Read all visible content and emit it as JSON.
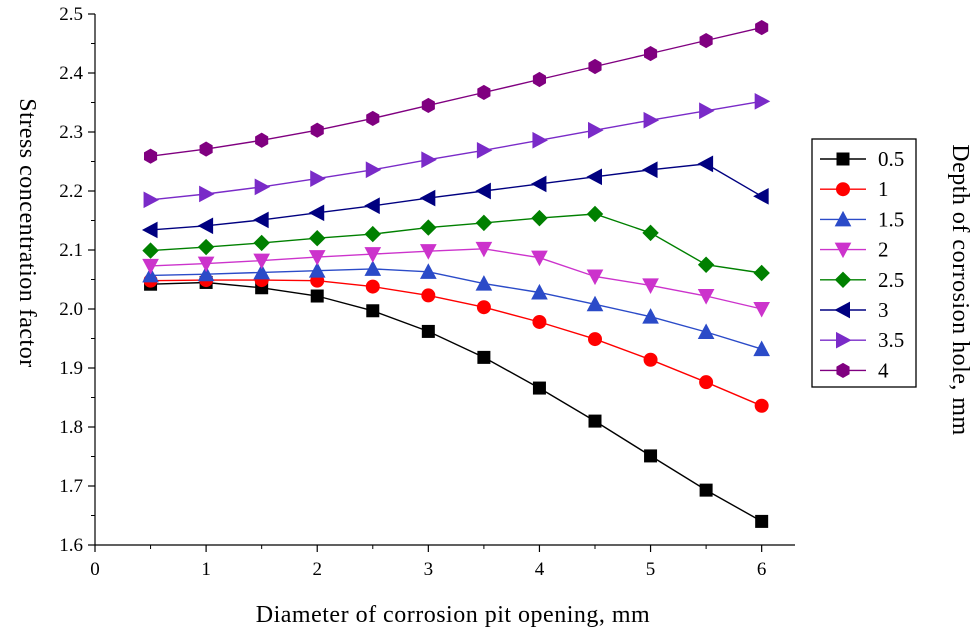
{
  "chart_data": {
    "type": "line",
    "xlabel": "Diameter of corrosion pit opening, mm",
    "ylabel": "Stress concentration factor",
    "legend_title": "Depth of corrosion hole, mm",
    "xlim": [
      0,
      6.3
    ],
    "ylim": [
      1.6,
      2.5
    ],
    "x_ticks": [
      0,
      1,
      2,
      3,
      4,
      5,
      6
    ],
    "y_ticks": [
      1.6,
      1.7,
      1.8,
      1.9,
      2.0,
      2.1,
      2.2,
      2.3,
      2.4,
      2.5
    ],
    "x": [
      0.5,
      1,
      1.5,
      2,
      2.5,
      3,
      3.5,
      4,
      4.5,
      5,
      5.5,
      6
    ],
    "series": [
      {
        "name": "0.5",
        "color": "#000000",
        "marker": "square",
        "values": [
          2.042,
          2.045,
          2.036,
          2.022,
          1.997,
          1.962,
          1.918,
          1.866,
          1.81,
          1.751,
          1.693,
          1.64
        ]
      },
      {
        "name": "1",
        "color": "#ff0000",
        "marker": "circle",
        "values": [
          2.048,
          2.049,
          2.049,
          2.048,
          2.038,
          2.023,
          2.003,
          1.978,
          1.949,
          1.914,
          1.876,
          1.836
        ]
      },
      {
        "name": "1.5",
        "color": "#2b4bc8",
        "marker": "triangle-up",
        "values": [
          2.057,
          2.059,
          2.062,
          2.065,
          2.068,
          2.063,
          2.043,
          2.028,
          2.008,
          1.987,
          1.961,
          1.932
        ]
      },
      {
        "name": "2",
        "color": "#cc33cc",
        "marker": "triangle-down",
        "values": [
          2.073,
          2.077,
          2.082,
          2.088,
          2.093,
          2.098,
          2.102,
          2.087,
          2.055,
          2.04,
          2.022,
          2.0
        ]
      },
      {
        "name": "2.5",
        "color": "#008000",
        "marker": "diamond",
        "values": [
          2.099,
          2.105,
          2.112,
          2.12,
          2.127,
          2.138,
          2.146,
          2.154,
          2.161,
          2.129,
          2.075,
          2.061
        ]
      },
      {
        "name": "3",
        "color": "#000080",
        "marker": "triangle-left",
        "values": [
          2.134,
          2.141,
          2.151,
          2.163,
          2.175,
          2.188,
          2.2,
          2.212,
          2.224,
          2.236,
          2.246,
          2.191
        ]
      },
      {
        "name": "3.5",
        "color": "#7a2bc8",
        "marker": "triangle-right",
        "values": [
          2.185,
          2.195,
          2.207,
          2.221,
          2.236,
          2.253,
          2.269,
          2.286,
          2.303,
          2.32,
          2.336,
          2.352
        ]
      },
      {
        "name": "4",
        "color": "#800080",
        "marker": "hexagon",
        "values": [
          2.259,
          2.271,
          2.286,
          2.303,
          2.323,
          2.345,
          2.367,
          2.389,
          2.411,
          2.433,
          2.455,
          2.477
        ]
      }
    ]
  }
}
